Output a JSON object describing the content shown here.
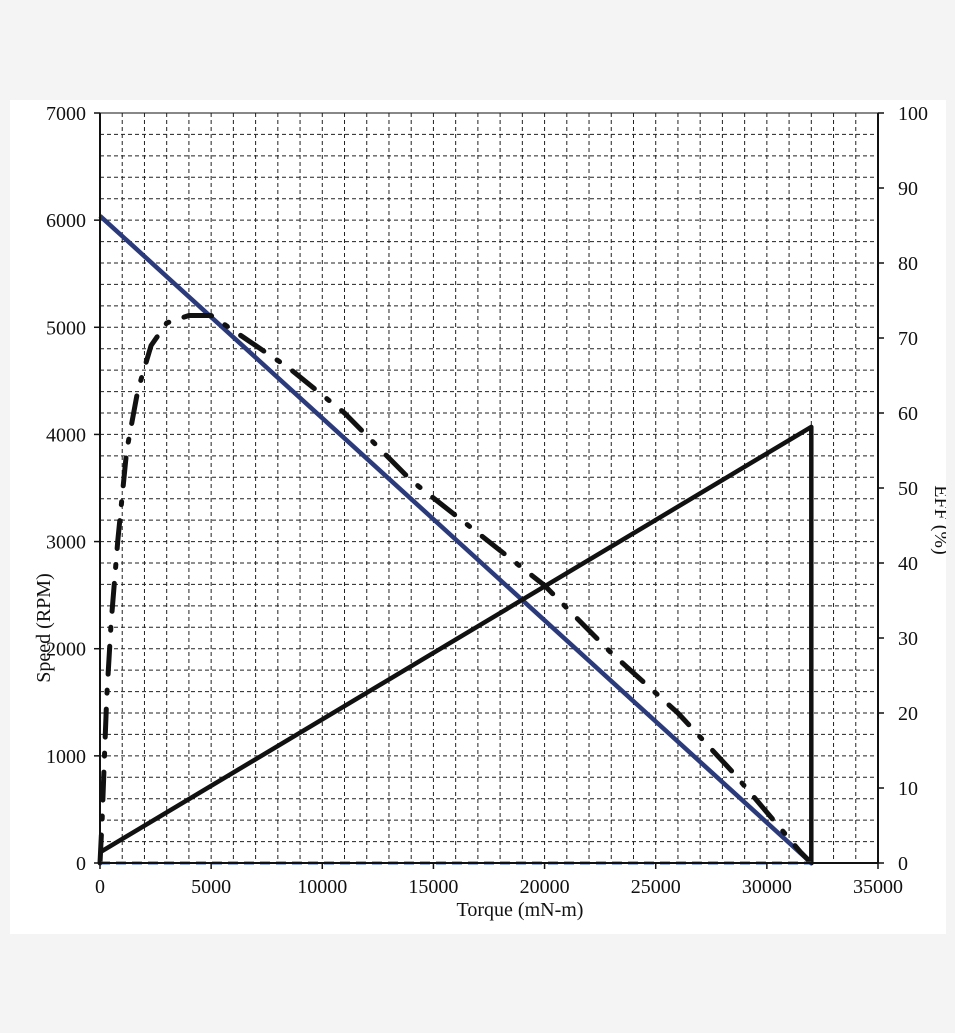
{
  "chart_data": {
    "type": "line",
    "title": "",
    "xlabel": "Torque (mN-m)",
    "ylabel": "Speed (RPM)",
    "y2label": "EFF (%)",
    "xlim": [
      0,
      35000
    ],
    "ylim": [
      0,
      7000
    ],
    "y2lim": [
      0,
      100
    ],
    "xticks": [
      0,
      5000,
      10000,
      15000,
      20000,
      25000,
      30000,
      35000
    ],
    "yticks": [
      0,
      1000,
      2000,
      3000,
      4000,
      5000,
      6000,
      7000
    ],
    "y2ticks": [
      0,
      10,
      20,
      30,
      40,
      50,
      60,
      70,
      80,
      90,
      100
    ],
    "grid": true,
    "grid_style": "dashed",
    "legend": "none",
    "series": [
      {
        "key": "speed",
        "axis": "left",
        "style": "solid",
        "color": "#2b3a7a",
        "x": [
          0,
          32000
        ],
        "y": [
          6040,
          0
        ]
      },
      {
        "key": "current",
        "axis": "left",
        "style": "solid",
        "color": "#111111",
        "x": [
          0,
          32000,
          32000
        ],
        "y": [
          100,
          4070,
          0
        ]
      },
      {
        "key": "efficiency",
        "axis": "right",
        "style": "dashdot",
        "color": "#111111",
        "x": [
          0,
          100,
          200,
          300,
          500,
          800,
          1200,
          1700,
          2300,
          3000,
          4000,
          5000,
          6500,
          8500,
          11000,
          14000,
          17000,
          20000,
          23000,
          26000,
          28500,
          30500,
          31500,
          32000
        ],
        "y": [
          0,
          6,
          14,
          22,
          32,
          43,
          55,
          63,
          69,
          72,
          73,
          73,
          70,
          66,
          60,
          51,
          44,
          37,
          28,
          20,
          12,
          5,
          1.5,
          0
        ]
      },
      {
        "key": "power",
        "axis": "left",
        "style": "dashed",
        "color": "#2f55b8",
        "x": [
          0,
          32000
        ],
        "y": [
          0,
          0
        ]
      }
    ]
  }
}
